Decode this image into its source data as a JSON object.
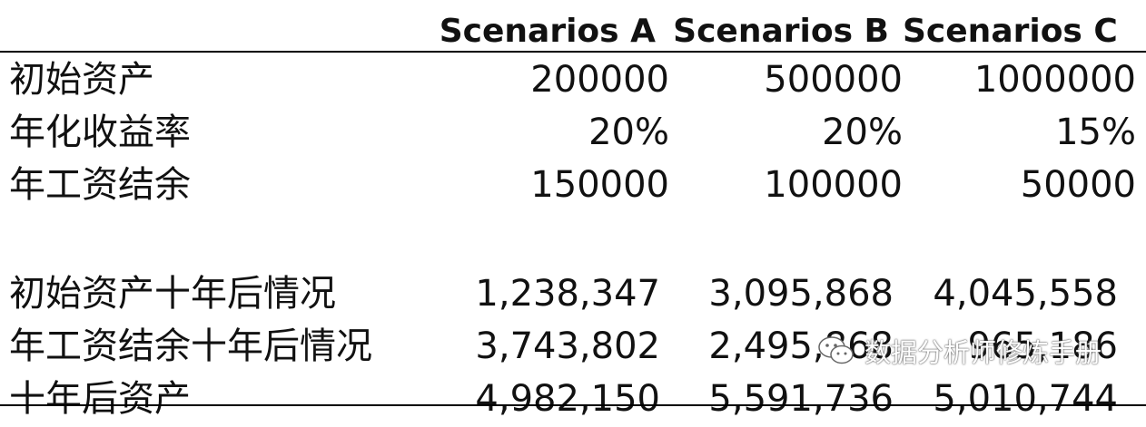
{
  "headers": [
    "",
    "Scenarios A",
    "Scenarios B",
    "Scenarios C"
  ],
  "inputs": [
    {
      "label": "初始资产",
      "values": [
        "200000",
        "500000",
        "1000000"
      ]
    },
    {
      "label": "年化收益率",
      "values": [
        "20%",
        "20%",
        "15%"
      ]
    },
    {
      "label": "年工资结余",
      "values": [
        "150000",
        "100000",
        "50000"
      ]
    }
  ],
  "results": [
    {
      "label": "初始资产十年后情况",
      "values": [
        "1,238,347",
        "3,095,868",
        "4,045,558"
      ]
    },
    {
      "label": "年工资结余十年后情况",
      "values": [
        "3,743,802",
        "2,495,868",
        "965,186"
      ]
    },
    {
      "label": "十年后资产",
      "values": [
        "4,982,150",
        "5,591,736",
        "5,010,744"
      ]
    }
  ],
  "watermark": {
    "text": "数据分析师修炼手册",
    "icon": "wechat-icon"
  }
}
